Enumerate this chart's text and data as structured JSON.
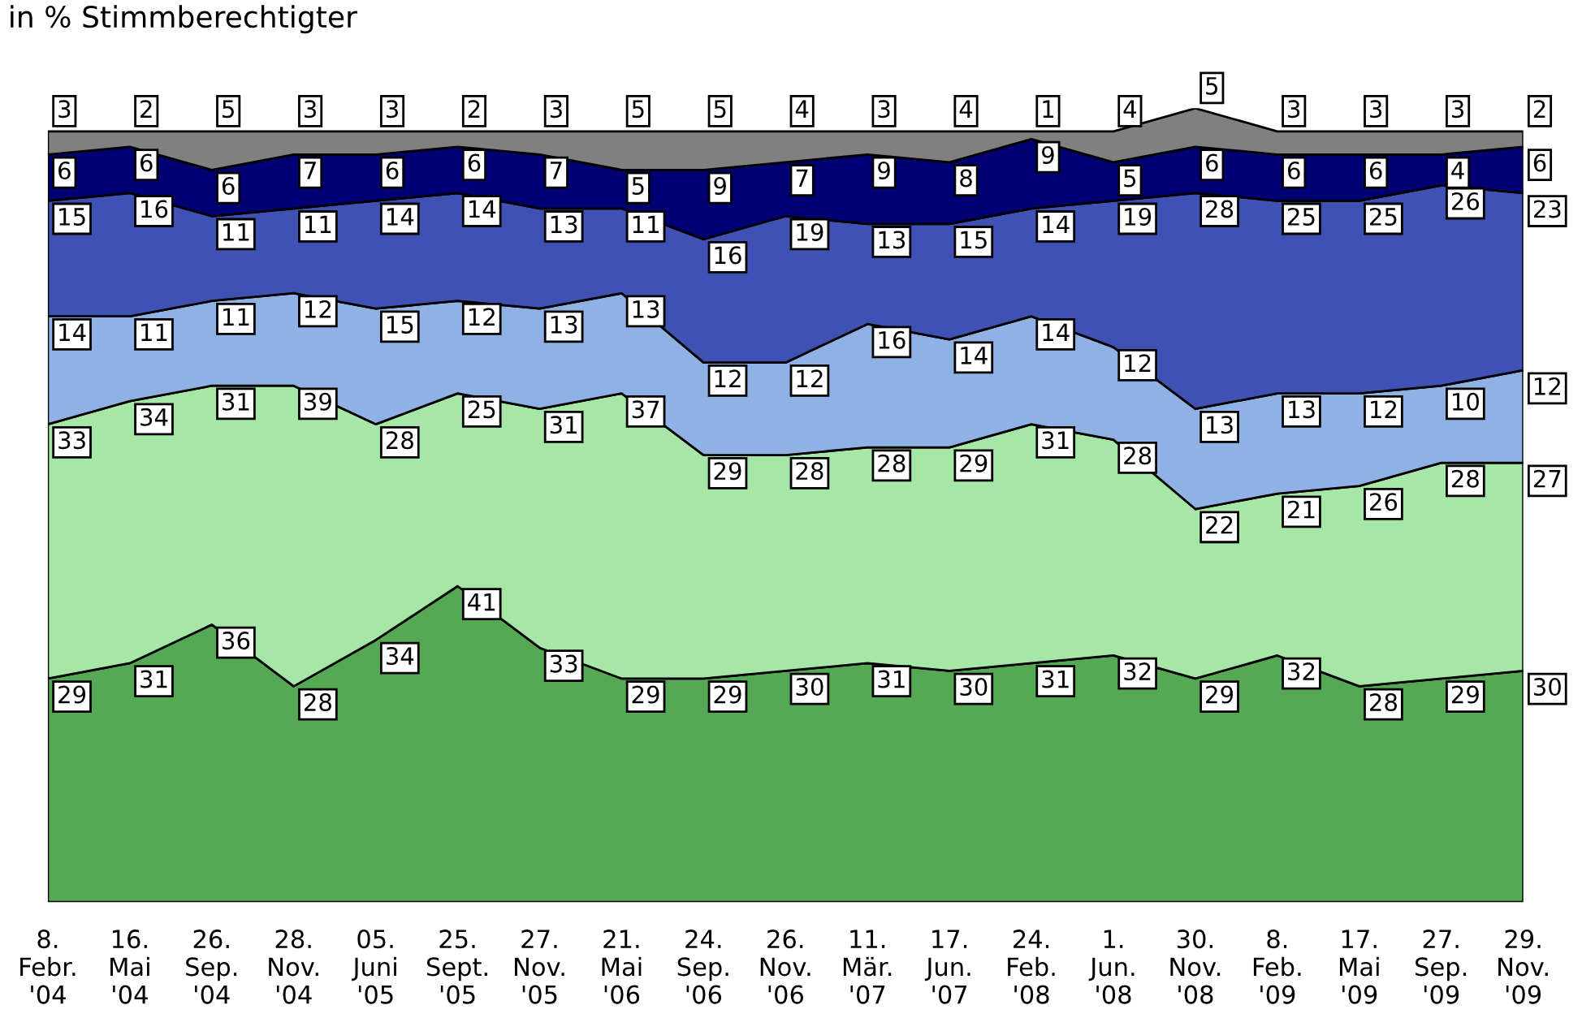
{
  "chart_data": {
    "type": "area",
    "stacked": true,
    "data_labels": true,
    "legend": false,
    "grid": false,
    "subtitle": "in % Stimmberechtigter",
    "categories": [
      "8.\nFebr.\n'04",
      "16.\nMai\n'04",
      "26.\nSep.\n'04",
      "28.\nNov.\n'04",
      "05.\nJuni\n'05",
      "25.\nSept.\n'05",
      "27.\nNov.\n'05",
      "21.\nMai\n'06",
      "24.\nSep.\n'06",
      "26.\nNov.\n'06",
      "11.\nMär.\n'07",
      "17.\nJun.\n'07",
      "24.\nFeb.\n'08",
      "1.\nJun.\n'08",
      "30.\nNov.\n'08",
      "8.\nFeb.\n'09",
      "17.\nMai\n'09",
      "27.\nSep.\n'09",
      "29.\nNov.\n'09"
    ],
    "series": [
      {
        "color": "#55a955",
        "values": [
          29,
          31,
          36,
          28,
          34,
          41,
          33,
          29,
          29,
          30,
          31,
          30,
          31,
          32,
          29,
          32,
          28,
          29,
          30
        ]
      },
      {
        "color": "#a6e6a6",
        "values": [
          33,
          34,
          31,
          39,
          28,
          25,
          31,
          37,
          29,
          28,
          28,
          29,
          31,
          28,
          22,
          21,
          26,
          28,
          27
        ]
      },
      {
        "color": "#8fb1e3",
        "values": [
          14,
          11,
          11,
          12,
          15,
          12,
          13,
          13,
          12,
          12,
          16,
          14,
          14,
          12,
          13,
          13,
          12,
          10,
          12
        ]
      },
      {
        "color": "#3f51b3",
        "values": [
          15,
          16,
          11,
          11,
          14,
          14,
          13,
          11,
          16,
          19,
          13,
          15,
          14,
          19,
          28,
          25,
          25,
          26,
          23
        ]
      },
      {
        "color": "#000072",
        "values": [
          6,
          6,
          6,
          7,
          6,
          6,
          7,
          5,
          9,
          7,
          9,
          8,
          9,
          5,
          6,
          6,
          6,
          4,
          6
        ]
      },
      {
        "color": "#808080",
        "values": [
          3,
          2,
          5,
          3,
          3,
          2,
          3,
          5,
          5,
          4,
          3,
          4,
          1,
          4,
          5,
          3,
          3,
          3,
          2
        ]
      }
    ]
  }
}
